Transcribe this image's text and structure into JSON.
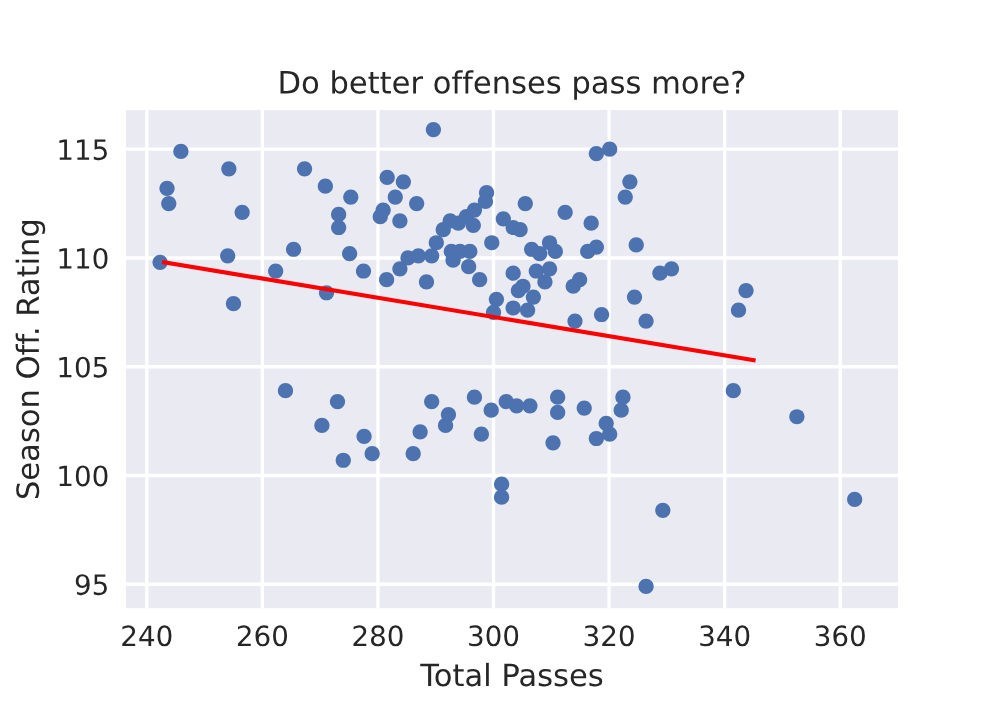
{
  "chart_data": {
    "type": "scatter",
    "title": "Do better offenses pass more?",
    "xlabel": "Total Passes",
    "ylabel": "Season Off. Rating",
    "marker": "circle",
    "grid": true,
    "xlim": [
      236.4,
      370
    ],
    "ylim": [
      93.9,
      116.8
    ],
    "xticks": [
      240,
      260,
      280,
      300,
      320,
      340,
      360
    ],
    "yticks": [
      95,
      100,
      105,
      110,
      115
    ],
    "series": [
      {
        "color": "#4c72b0",
        "x": [
          245.9,
          243.5,
          243.8,
          254.2,
          256.5,
          267.3,
          270.9,
          273.2,
          273.2,
          275.3,
          281.6,
          284.4,
          283.0,
          286.7,
          280.4,
          280.9,
          283.8,
          289.6,
          242.3,
          254.0,
          262.3,
          265.4,
          275.1,
          277.5,
          281.5,
          283.8,
          285.2,
          287.0,
          289.3,
          290.1,
          291.3,
          292.5,
          293.9,
          295.3,
          296.5,
          293.0,
          292.7,
          294.2,
          295.7,
          298.8,
          298.6,
          296.7,
          299.7,
          295.9,
          297.6,
          288.4,
          255.0,
          271.1,
          305.5,
          317.8,
          320.1,
          323.6,
          322.8,
          312.4,
          316.9,
          301.7,
          303.4,
          304.6,
          309.7,
          310.7,
          306.6,
          308.0,
          316.3,
          317.8,
          324.7,
          303.4,
          307.4,
          309.7,
          308.9,
          313.8,
          314.9,
          328.8,
          330.8,
          305.1,
          304.3,
          306.9,
          324.4,
          343.7,
          342.4,
          300.5,
          303.4,
          305.9,
          300.0,
          314.1,
          318.7,
          326.4,
          270.3,
          273.0,
          277.6,
          279.0,
          274.0,
          286.1,
          287.3,
          291.7,
          292.2,
          289.3,
          297.9,
          299.6,
          296.7,
          264.0,
          301.4,
          301.4,
          310.3,
          317.8,
          320.1,
          319.5,
          329.3,
          326.4,
          362.5,
          352.5,
          322.1,
          315.7,
          311.1,
          311.1,
          306.3,
          304.0,
          302.2,
          341.5,
          322.4
        ],
        "values": [
          114.9,
          113.2,
          112.5,
          114.1,
          112.1,
          114.1,
          113.3,
          112.0,
          111.4,
          112.8,
          113.7,
          113.5,
          112.8,
          112.5,
          111.9,
          112.2,
          111.7,
          115.9,
          109.8,
          110.1,
          109.4,
          110.4,
          110.2,
          109.4,
          109.0,
          109.5,
          110.0,
          110.1,
          110.1,
          110.7,
          111.3,
          111.7,
          111.6,
          111.9,
          111.5,
          109.9,
          110.3,
          110.3,
          109.6,
          113.0,
          112.6,
          112.2,
          110.7,
          110.3,
          109.0,
          108.9,
          107.9,
          108.4,
          112.5,
          114.8,
          115.0,
          113.5,
          112.8,
          112.1,
          111.6,
          111.8,
          111.4,
          111.3,
          110.7,
          110.3,
          110.4,
          110.2,
          110.3,
          110.5,
          110.6,
          109.3,
          109.4,
          109.5,
          108.9,
          108.7,
          109.0,
          109.3,
          109.5,
          108.7,
          108.5,
          108.2,
          108.2,
          108.5,
          107.6,
          108.1,
          107.7,
          107.6,
          107.5,
          107.1,
          107.4,
          107.1,
          102.3,
          103.4,
          101.8,
          101.0,
          100.7,
          101.0,
          102.0,
          102.3,
          102.8,
          103.4,
          101.9,
          103.0,
          103.6,
          103.9,
          99.6,
          99.0,
          101.5,
          101.7,
          101.9,
          102.4,
          98.4,
          94.9,
          98.9,
          102.7,
          103.0,
          103.1,
          102.9,
          103.6,
          103.2,
          103.2,
          103.4,
          103.9,
          103.6
        ]
      },
      {
        "type": "line",
        "color": "#ff0000",
        "marker": "none",
        "x": [
          243,
          345
        ],
        "values": [
          109.8,
          105.3
        ]
      }
    ]
  }
}
